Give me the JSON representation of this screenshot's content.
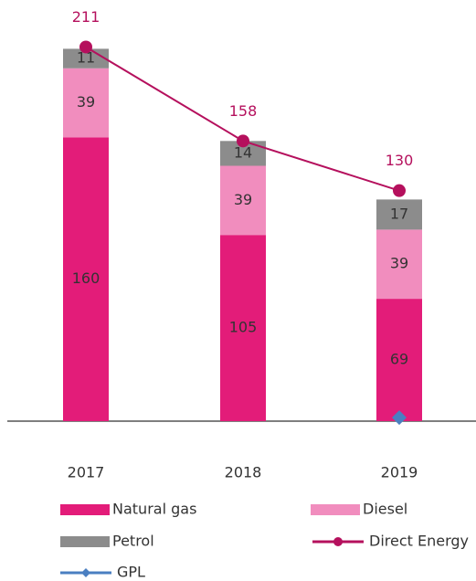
{
  "chart_data": {
    "type": "bar",
    "stacked": true,
    "categories": [
      "2017",
      "2018",
      "2019"
    ],
    "ylim": [
      0,
      220
    ],
    "series": [
      {
        "name": "Natural gas",
        "color": "#e31c79",
        "values": [
          160,
          105,
          69
        ]
      },
      {
        "name": "Diesel",
        "color": "#f18dbe",
        "values": [
          39,
          39,
          39
        ]
      },
      {
        "name": "Petrol",
        "color": "#8c8c8c",
        "values": [
          11,
          14,
          17
        ]
      },
      {
        "name": "Direct Energy",
        "type": "line",
        "marker": "circle",
        "color": "#b5105d",
        "values": [
          211,
          158,
          130
        ]
      },
      {
        "name": "GPL",
        "type": "line",
        "marker": "diamond",
        "color": "#4a7fc1",
        "values": [
          null,
          null,
          2
        ]
      }
    ]
  }
}
